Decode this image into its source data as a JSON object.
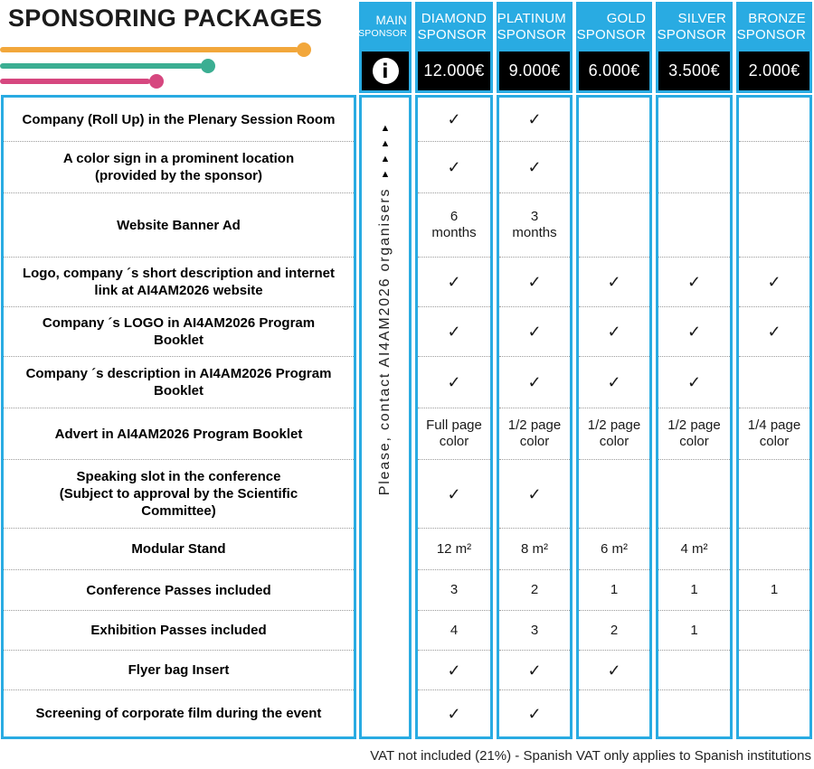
{
  "title": "SPONSORING PACKAGES",
  "columns": [
    {
      "line1": "MAIN",
      "line2": "SPONSOR",
      "price": ""
    },
    {
      "line1": "DIAMOND",
      "line2": "SPONSOR",
      "price": "12.000€"
    },
    {
      "line1": "PLATINUM",
      "line2": "SPONSOR",
      "price": "9.000€"
    },
    {
      "line1": "GOLD",
      "line2": "SPONSOR",
      "price": "6.000€"
    },
    {
      "line1": "SILVER",
      "line2": "SPONSOR",
      "price": "3.500€"
    },
    {
      "line1": "BRONZE",
      "line2": "SPONSOR",
      "price": "2.000€"
    }
  ],
  "main_column": {
    "info_icon_glyph": "i",
    "triangles": "▲\n▲\n▲\n▲",
    "note": "Please, contact AI4AM2026 organisers"
  },
  "rows": [
    {
      "label": "Company (Roll Up) in the Plenary Session Room",
      "values": [
        "✓",
        "✓",
        "",
        "",
        ""
      ]
    },
    {
      "label": "A color sign in a prominent location\n(provided by the sponsor)",
      "values": [
        "✓",
        "✓",
        "",
        "",
        ""
      ]
    },
    {
      "label": "Website Banner Ad",
      "values": [
        "6\nmonths",
        "3\nmonths",
        "",
        "",
        ""
      ]
    },
    {
      "label": "Logo, company ´s short description and internet\nlink at AI4AM2026 website",
      "values": [
        "✓",
        "✓",
        "✓",
        "✓",
        "✓"
      ]
    },
    {
      "label": "Company ´s LOGO in AI4AM2026  Program\nBooklet",
      "values": [
        "✓",
        "✓",
        "✓",
        "✓",
        "✓"
      ]
    },
    {
      "label": "Company ´s description in AI4AM2026 Program\nBooklet",
      "values": [
        "✓",
        "✓",
        "✓",
        "✓",
        ""
      ]
    },
    {
      "label": "Advert in AI4AM2026  Program Booklet",
      "values": [
        "Full page\ncolor",
        "1/2 page\ncolor",
        "1/2 page\ncolor",
        "1/2 page\ncolor",
        "1/4 page\ncolor"
      ]
    },
    {
      "label": "Speaking slot in the conference\n(Subject to approval by the Scientific\nCommittee)",
      "values": [
        "✓",
        "✓",
        "",
        "",
        ""
      ]
    },
    {
      "label": "Modular Stand",
      "values": [
        "12 m²",
        "8 m²",
        "6 m²",
        "4 m²",
        ""
      ]
    },
    {
      "label": "Conference Passes included",
      "values": [
        "3",
        "2",
        "1",
        "1",
        "1"
      ]
    },
    {
      "label": "Exhibition Passes included",
      "values": [
        "4",
        "3",
        "2",
        "1",
        ""
      ]
    },
    {
      "label": "Flyer bag Insert",
      "values": [
        "✓",
        "✓",
        "✓",
        "",
        ""
      ]
    },
    {
      "label": "Screening of corporate film during the event",
      "values": [
        "✓",
        "✓",
        "",
        "",
        ""
      ]
    }
  ],
  "footer": "VAT not included (21%) - Spanish VAT only applies to Spanish institutions",
  "colors": {
    "accent_cyan": "#29ABE2",
    "price_bg": "#000000",
    "decor_yellow": "#F2A73B",
    "decor_teal": "#3BAE92",
    "decor_pink": "#D6477F"
  }
}
